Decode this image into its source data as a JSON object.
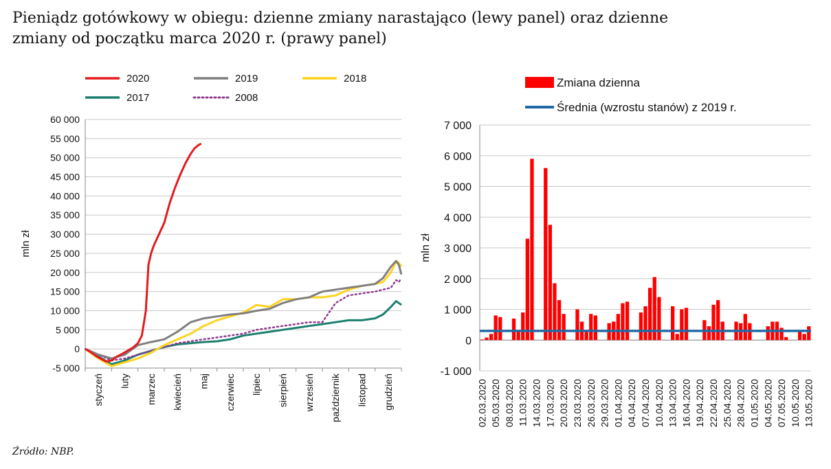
{
  "title_line1": "Pieniądz gotówkowy w obiegu: dzienne zmiany narastająco (lewy panel) oraz dzienne",
  "title_line2": "zmiany od początku marca 2020 r. (prawy panel)",
  "source": "Źródło: NBP.",
  "chart_data": [
    {
      "type": "line",
      "panel": "left",
      "ylabel": "mln zł",
      "ylim": [
        -5000,
        60000
      ],
      "yticks": [
        -5000,
        0,
        5000,
        10000,
        15000,
        20000,
        25000,
        30000,
        35000,
        40000,
        45000,
        50000,
        55000,
        60000
      ],
      "ytick_labels": [
        "-5 000",
        "0",
        "5 000",
        "10 000",
        "15 000",
        "20 000",
        "25 000",
        "30 000",
        "35 000",
        "40 000",
        "45 000",
        "50 000",
        "55 000",
        "60 000"
      ],
      "x_unit": "month index (0 = początek stycznia, 12 = koniec grudnia)",
      "xlim": [
        0,
        12
      ],
      "month_labels": [
        "styczeń",
        "luty",
        "marzec",
        "kwiecień",
        "maj",
        "czerwiec",
        "lipiec",
        "sierpień",
        "wrzesień",
        "październik",
        "listopad",
        "grudzień"
      ],
      "grid": true,
      "legend_position": "top",
      "series": [
        {
          "name": "2020",
          "color": "#e31a1c",
          "style": "solid",
          "x": [
            0,
            0.2,
            0.4,
            0.6,
            0.8,
            1.0,
            1.2,
            1.4,
            1.6,
            1.8,
            2.0,
            2.15,
            2.3,
            2.4,
            2.5,
            2.6,
            2.8,
            3.0,
            3.2,
            3.4,
            3.6,
            3.8,
            4.0,
            4.15,
            4.3,
            4.4
          ],
          "y": [
            0,
            -800,
            -1800,
            -2600,
            -3300,
            -3000,
            -2000,
            -1300,
            -500,
            300,
            1500,
            3500,
            10000,
            22000,
            25000,
            27000,
            30000,
            33000,
            38000,
            42000,
            45500,
            48500,
            51000,
            52500,
            53300,
            53700
          ]
        },
        {
          "name": "2019",
          "color": "#7f7f7f",
          "style": "solid",
          "x": [
            0,
            0.5,
            1.0,
            1.5,
            2.0,
            2.5,
            3.0,
            3.5,
            4.0,
            4.5,
            5.0,
            5.5,
            6.0,
            6.5,
            7.0,
            7.5,
            8.0,
            8.5,
            9.0,
            9.5,
            10.0,
            10.5,
            11.0,
            11.3,
            11.6,
            11.8,
            11.9,
            12.0
          ],
          "y": [
            0,
            -1500,
            -2500,
            -1500,
            1000,
            1800,
            2500,
            4500,
            7000,
            8000,
            8500,
            9000,
            9300,
            10000,
            10500,
            12000,
            13000,
            13500,
            15000,
            15500,
            16000,
            16500,
            17000,
            18500,
            21500,
            23000,
            22000,
            19500
          ]
        },
        {
          "name": "2018",
          "color": "#ffd320",
          "style": "solid",
          "x": [
            0,
            0.5,
            1.0,
            1.5,
            2.0,
            2.5,
            3.0,
            3.5,
            4.0,
            4.5,
            5.0,
            5.5,
            6.0,
            6.5,
            7.0,
            7.5,
            8.0,
            8.5,
            9.0,
            9.5,
            10.0,
            10.5,
            11.0,
            11.3,
            11.6,
            11.8,
            11.9,
            12.0
          ],
          "y": [
            0,
            -2500,
            -4500,
            -3500,
            -2500,
            -1000,
            1000,
            2500,
            4000,
            6000,
            7500,
            8500,
            9500,
            11500,
            11000,
            13000,
            13000,
            13500,
            13500,
            14000,
            15500,
            16500,
            17000,
            17500,
            20000,
            23000,
            22500,
            21500
          ]
        },
        {
          "name": "2017",
          "color": "#1b7f6e",
          "style": "solid",
          "x": [
            0,
            0.5,
            1.0,
            1.5,
            2.0,
            2.5,
            3.0,
            3.5,
            4.0,
            4.5,
            5.0,
            5.5,
            6.0,
            6.5,
            7.0,
            7.5,
            8.0,
            8.5,
            9.0,
            9.5,
            10.0,
            10.5,
            11.0,
            11.3,
            11.6,
            11.8,
            11.9,
            12.0
          ],
          "y": [
            0,
            -2000,
            -4000,
            -3000,
            -1500,
            -500,
            500,
            1200,
            1500,
            1800,
            2000,
            2500,
            3500,
            4000,
            4500,
            5000,
            5500,
            6000,
            6500,
            7000,
            7500,
            7500,
            8000,
            9000,
            11000,
            12500,
            12000,
            11500
          ]
        },
        {
          "name": "2008",
          "color": "#8e3a8e",
          "style": "dotted",
          "x": [
            0,
            0.5,
            1.0,
            1.5,
            2.0,
            2.5,
            3.0,
            3.5,
            4.0,
            4.5,
            5.0,
            5.5,
            6.0,
            6.5,
            7.0,
            7.5,
            8.0,
            8.5,
            9.0,
            9.5,
            10.0,
            10.5,
            11.0,
            11.3,
            11.6,
            11.8,
            11.9,
            12.0
          ],
          "y": [
            0,
            -1500,
            -3000,
            -2500,
            -1500,
            -500,
            500,
            1500,
            2000,
            2500,
            3000,
            3500,
            4000,
            5000,
            5500,
            6000,
            6500,
            7000,
            7000,
            12000,
            14000,
            14500,
            15000,
            15500,
            16000,
            18000,
            17500,
            18500
          ]
        }
      ]
    },
    {
      "type": "bar",
      "panel": "right",
      "ylabel": "mln zł",
      "ylim": [
        -1000,
        7000
      ],
      "yticks": [
        -1000,
        0,
        1000,
        2000,
        3000,
        4000,
        5000,
        6000,
        7000
      ],
      "ytick_labels": [
        "-1 000",
        "0",
        "1 000",
        "2 000",
        "3 000",
        "4 000",
        "5 000",
        "6 000",
        "7 000"
      ],
      "grid": true,
      "legend_position": "top",
      "bar_series_name": "Zmiana dzienna",
      "bar_color": "#ff0000",
      "line_series_name": "Średnia (wzrostu stanów) z 2019 r.",
      "line_color": "#1f6aa5",
      "line_value": 300,
      "date_labels": [
        "02.03.2020",
        "05.03.2020",
        "08.03.2020",
        "11.03.2020",
        "14.03.2020",
        "17.03.2020",
        "20.03.2020",
        "23.03.2020",
        "26.03.2020",
        "29.03.2020",
        "01.04.2020",
        "04.04.2020",
        "07.04.2020",
        "10.04.2020",
        "13.04.2020",
        "16.04.2020",
        "19.04.2020",
        "22.04.2020",
        "25.04.2020",
        "28.04.2020",
        "01.05.2020",
        "04.05.2020",
        "07.05.2020",
        "10.05.2020",
        "13.05.2020"
      ],
      "label_every": 3,
      "values": [
        20,
        80,
        200,
        800,
        750,
        0,
        0,
        700,
        300,
        900,
        3300,
        5900,
        0,
        0,
        5600,
        3750,
        1850,
        1300,
        850,
        0,
        0,
        1000,
        600,
        300,
        850,
        800,
        0,
        0,
        550,
        600,
        850,
        1200,
        1250,
        0,
        0,
        900,
        1100,
        1700,
        2050,
        1400,
        0,
        0,
        1100,
        200,
        1000,
        1050,
        0,
        0,
        0,
        650,
        450,
        1150,
        1300,
        600,
        0,
        0,
        600,
        550,
        850,
        550,
        0,
        0,
        0,
        450,
        600,
        600,
        400,
        100,
        0,
        0,
        300,
        200,
        450
      ]
    }
  ]
}
